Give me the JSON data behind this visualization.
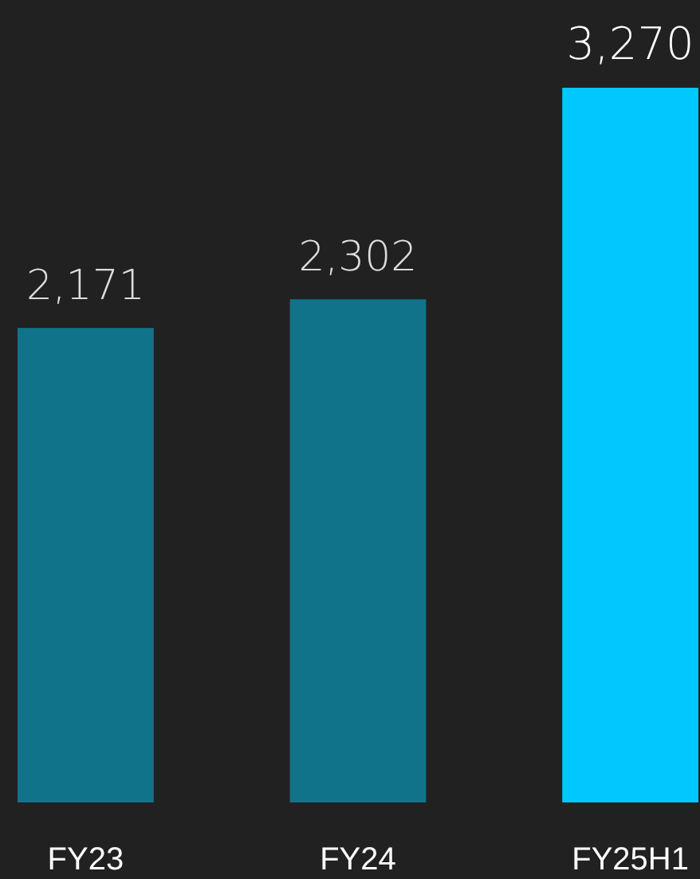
{
  "chart_data": {
    "type": "bar",
    "categories": [
      "FY23",
      "FY24",
      "FY25H1"
    ],
    "values": [
      2171,
      2302,
      3270
    ],
    "colors": [
      "#11738a",
      "#11738a",
      "#00c8ff"
    ],
    "value_labels": [
      "2,171",
      "2,302",
      "3,270"
    ]
  }
}
